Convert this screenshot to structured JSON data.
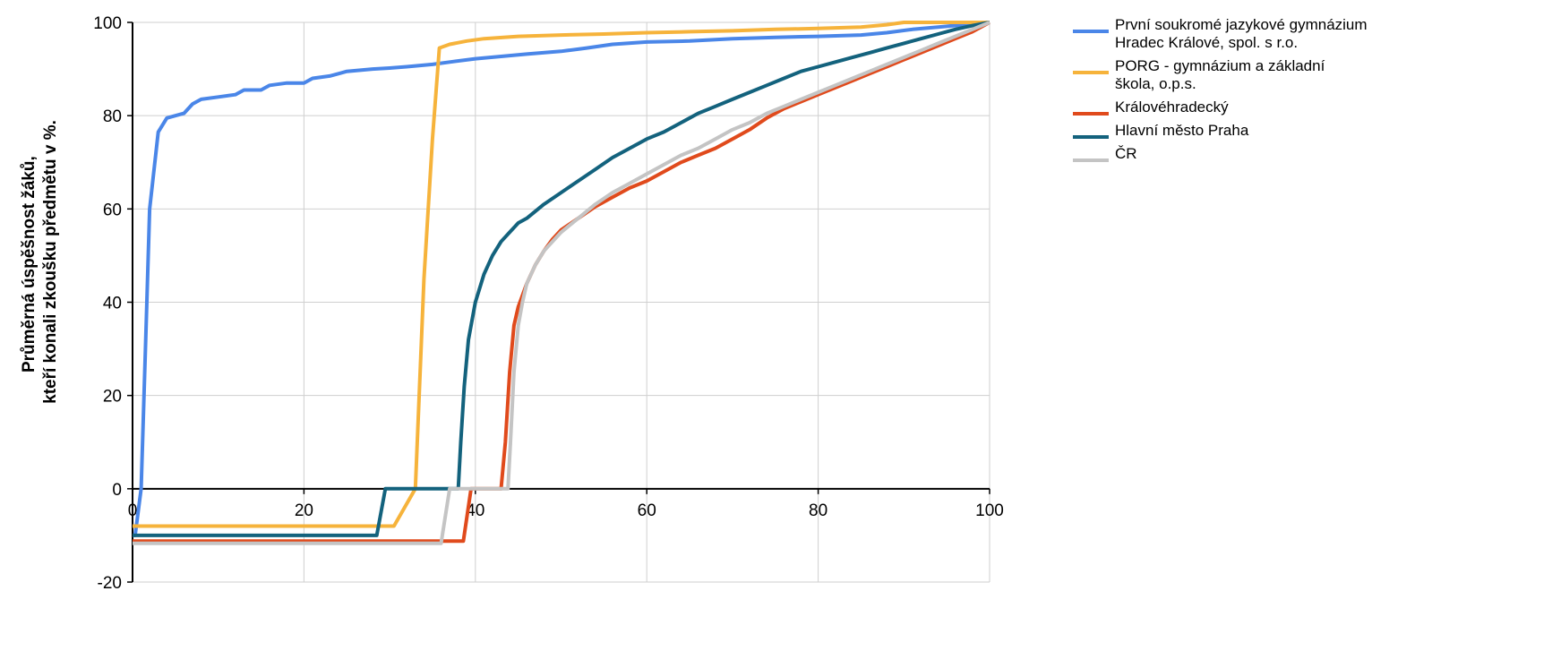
{
  "chart_data": {
    "type": "line",
    "ylabel_lines": [
      "Průměrná úspěšnost žáků,",
      "kteří konali zkoušku předmětu v %."
    ],
    "xlim": [
      0,
      100
    ],
    "ylim": [
      -20,
      100
    ],
    "xticks": [
      0,
      20,
      40,
      60,
      80,
      100
    ],
    "yticks": [
      -20,
      0,
      20,
      40,
      60,
      80,
      100
    ],
    "grid": true,
    "legend_position": "top-right",
    "series": [
      {
        "name_lines": [
          "První soukromé jazykové gymnázium",
          "Hradec Králové, spol. s r.o."
        ],
        "color": "#4a86e8",
        "points": [
          [
            0,
            -10
          ],
          [
            0.3,
            -10
          ],
          [
            1,
            0
          ],
          [
            1.5,
            30
          ],
          [
            2,
            60
          ],
          [
            3,
            76.5
          ],
          [
            4,
            79.5
          ],
          [
            5,
            80
          ],
          [
            6,
            80.5
          ],
          [
            7,
            82.5
          ],
          [
            8,
            83.5
          ],
          [
            10,
            84
          ],
          [
            12,
            84.5
          ],
          [
            13,
            85.5
          ],
          [
            15,
            85.5
          ],
          [
            16,
            86.5
          ],
          [
            18,
            87
          ],
          [
            20,
            87
          ],
          [
            21,
            88
          ],
          [
            23,
            88.5
          ],
          [
            25,
            89.5
          ],
          [
            28,
            90
          ],
          [
            30,
            90.2
          ],
          [
            32,
            90.5
          ],
          [
            35,
            91
          ],
          [
            37,
            91.5
          ],
          [
            40,
            92.2
          ],
          [
            43,
            92.7
          ],
          [
            46,
            93.2
          ],
          [
            50,
            93.8
          ],
          [
            53,
            94.5
          ],
          [
            56,
            95.3
          ],
          [
            60,
            95.8
          ],
          [
            65,
            96
          ],
          [
            70,
            96.5
          ],
          [
            75,
            96.8
          ],
          [
            80,
            97
          ],
          [
            85,
            97.3
          ],
          [
            88,
            97.8
          ],
          [
            91,
            98.5
          ],
          [
            94,
            99
          ],
          [
            97,
            99.5
          ],
          [
            100,
            100
          ]
        ]
      },
      {
        "name_lines": [
          "PORG - gymnázium a základní",
          "škola, o.p.s."
        ],
        "color": "#f6b33b",
        "points": [
          [
            0,
            -8
          ],
          [
            30,
            -8
          ],
          [
            30.5,
            -8
          ],
          [
            33,
            0
          ],
          [
            34,
            45
          ],
          [
            35,
            75
          ],
          [
            35.8,
            94.5
          ],
          [
            37,
            95.3
          ],
          [
            39,
            96
          ],
          [
            41,
            96.5
          ],
          [
            45,
            97
          ],
          [
            50,
            97.3
          ],
          [
            55,
            97.5
          ],
          [
            60,
            97.8
          ],
          [
            65,
            98
          ],
          [
            70,
            98.2
          ],
          [
            75,
            98.5
          ],
          [
            80,
            98.7
          ],
          [
            85,
            99
          ],
          [
            88,
            99.5
          ],
          [
            90,
            100
          ],
          [
            100,
            100
          ]
        ]
      },
      {
        "name_lines": [
          "Královéhradecký"
        ],
        "color": "#e04a1c",
        "points": [
          [
            0,
            -11.2
          ],
          [
            38,
            -11.2
          ],
          [
            38.6,
            -11.2
          ],
          [
            39.5,
            0
          ],
          [
            43,
            0
          ],
          [
            43.5,
            10
          ],
          [
            44,
            25
          ],
          [
            44.5,
            35
          ],
          [
            45,
            39
          ],
          [
            46,
            44
          ],
          [
            47,
            48
          ],
          [
            48,
            51
          ],
          [
            49,
            53.5
          ],
          [
            50,
            55.5
          ],
          [
            52,
            58
          ],
          [
            54,
            60.5
          ],
          [
            56,
            62.5
          ],
          [
            58,
            64.5
          ],
          [
            60,
            66
          ],
          [
            62,
            68
          ],
          [
            64,
            70
          ],
          [
            66,
            71.5
          ],
          [
            68,
            73
          ],
          [
            70,
            75
          ],
          [
            72,
            77
          ],
          [
            74,
            79.5
          ],
          [
            76,
            81.5
          ],
          [
            78,
            83
          ],
          [
            80,
            84.5
          ],
          [
            82,
            86
          ],
          [
            84,
            87.5
          ],
          [
            86,
            89
          ],
          [
            88,
            90.5
          ],
          [
            90,
            92
          ],
          [
            92,
            93.5
          ],
          [
            94,
            95
          ],
          [
            96,
            96.5
          ],
          [
            98,
            98
          ],
          [
            100,
            100
          ]
        ]
      },
      {
        "name_lines": [
          "Hlavní město Praha"
        ],
        "color": "#13627d",
        "points": [
          [
            0,
            -10
          ],
          [
            28.5,
            -10
          ],
          [
            29.5,
            0
          ],
          [
            38,
            0
          ],
          [
            38.3,
            10
          ],
          [
            38.7,
            22
          ],
          [
            39.2,
            32
          ],
          [
            40,
            40
          ],
          [
            41,
            46
          ],
          [
            42,
            50
          ],
          [
            43,
            53
          ],
          [
            44,
            55
          ],
          [
            45,
            57
          ],
          [
            46,
            58
          ],
          [
            48,
            61
          ],
          [
            50,
            63.5
          ],
          [
            52,
            66
          ],
          [
            54,
            68.5
          ],
          [
            56,
            71
          ],
          [
            58,
            73
          ],
          [
            60,
            75
          ],
          [
            62,
            76.5
          ],
          [
            64,
            78.5
          ],
          [
            66,
            80.5
          ],
          [
            68,
            82
          ],
          [
            70,
            83.5
          ],
          [
            72,
            85
          ],
          [
            74,
            86.5
          ],
          [
            76,
            88
          ],
          [
            78,
            89.5
          ],
          [
            80,
            90.5
          ],
          [
            82,
            91.5
          ],
          [
            84,
            92.5
          ],
          [
            86,
            93.5
          ],
          [
            88,
            94.5
          ],
          [
            90,
            95.5
          ],
          [
            92,
            96.5
          ],
          [
            94,
            97.5
          ],
          [
            96,
            98.5
          ],
          [
            98,
            99.3
          ],
          [
            100,
            100
          ]
        ]
      },
      {
        "name_lines": [
          "ČR"
        ],
        "color": "#c4c4c4",
        "points": [
          [
            0,
            -11.7
          ],
          [
            36,
            -11.7
          ],
          [
            37,
            0
          ],
          [
            43.8,
            0
          ],
          [
            44.1,
            10
          ],
          [
            44.5,
            25
          ],
          [
            45,
            35
          ],
          [
            45.5,
            40
          ],
          [
            46,
            44
          ],
          [
            47,
            48
          ],
          [
            48,
            51
          ],
          [
            50,
            55
          ],
          [
            52,
            58
          ],
          [
            54,
            61
          ],
          [
            56,
            63.5
          ],
          [
            58,
            65.5
          ],
          [
            60,
            67.5
          ],
          [
            62,
            69.5
          ],
          [
            64,
            71.5
          ],
          [
            66,
            73
          ],
          [
            68,
            75
          ],
          [
            70,
            77
          ],
          [
            72,
            78.5
          ],
          [
            74,
            80.5
          ],
          [
            76,
            82
          ],
          [
            78,
            83.5
          ],
          [
            80,
            85
          ],
          [
            82,
            86.5
          ],
          [
            84,
            88
          ],
          [
            86,
            89.5
          ],
          [
            88,
            91
          ],
          [
            90,
            92.5
          ],
          [
            92,
            94
          ],
          [
            94,
            95.5
          ],
          [
            96,
            97
          ],
          [
            98,
            98.5
          ],
          [
            100,
            100
          ]
        ]
      }
    ]
  }
}
